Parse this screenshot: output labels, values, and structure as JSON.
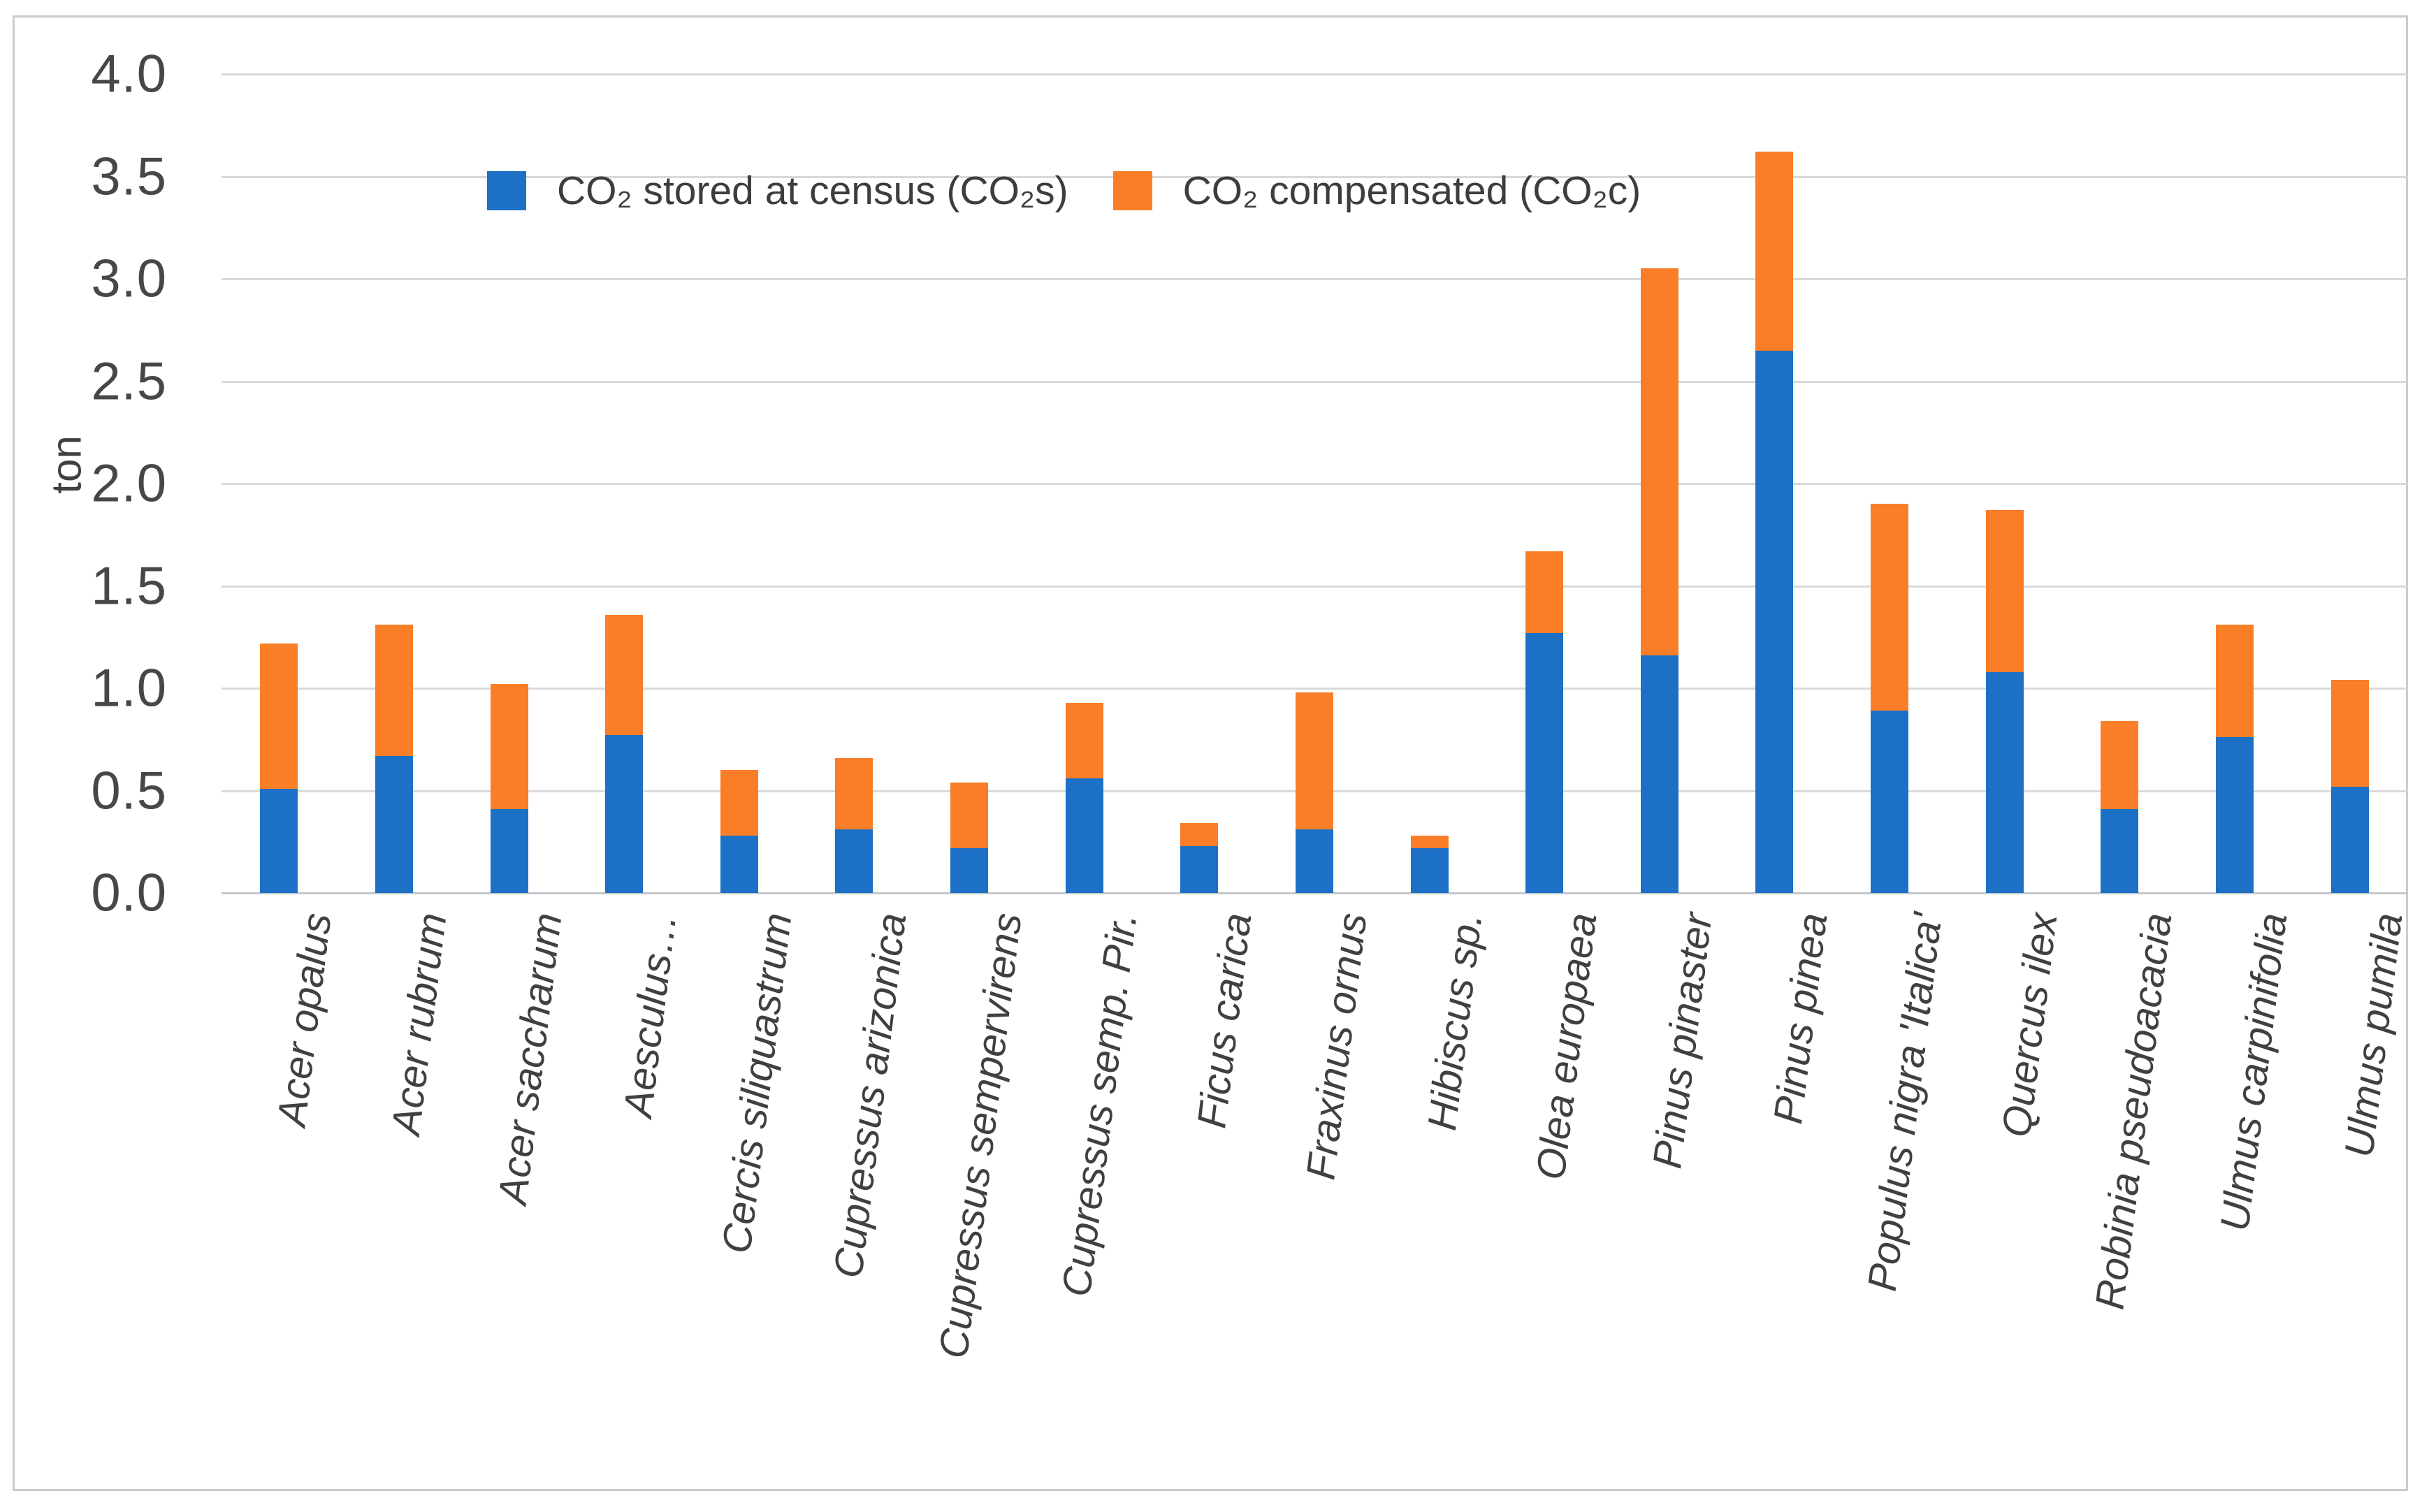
{
  "figure": {
    "kind": "stacked-column-chart",
    "background": "#ffffff",
    "border_color": "#c9cdce"
  },
  "colors": {
    "series_blue": "#1c70c5",
    "series_orange": "#f97e27",
    "gridline": "#d9d9d9",
    "axis_text": "#474747",
    "label_text": "#404040"
  },
  "chart_data": {
    "type": "bar",
    "stacked": true,
    "title": "",
    "xlabel": "",
    "ylabel": "ton",
    "ylim": [
      0,
      4
    ],
    "ytick_step": 0.5,
    "ytick_labels": [
      "4.0",
      "3.5",
      "3.0",
      "2.5",
      "2.0",
      "1.5",
      "1.0",
      "0.5",
      "0.0"
    ],
    "grid": true,
    "legend_position": "top-left-inside",
    "categories": [
      "Acer opalus",
      "Acer rubrum",
      "Acer saccharum",
      "Aesculus…",
      "Cercis siliquastrum",
      "Cupressus arizonica",
      "Cupressus sempervirens",
      "Cupressus semp. Pir.",
      "Ficus carica",
      "Fraxinus ornus",
      "Hibiscus sp.",
      "Olea europaea",
      "Pinus pinaster",
      "Pinus pinea",
      "Populus nigra 'Italica'",
      "Quercus ilex",
      "Robinia pseudoacacia",
      "Ulmus carpinifolia",
      "Ulmus pumila"
    ],
    "series": [
      {
        "name": "CO₂ stored at census (CO₂s)",
        "color": "#1c70c5",
        "values": [
          0.51,
          0.67,
          0.41,
          0.77,
          0.28,
          0.31,
          0.22,
          0.56,
          0.23,
          0.31,
          0.22,
          1.27,
          1.16,
          2.65,
          0.89,
          1.08,
          0.41,
          0.76,
          0.52
        ]
      },
      {
        "name": "CO₂ compensated (CO₂c)",
        "color": "#f97e27",
        "values": [
          0.71,
          0.64,
          0.61,
          0.59,
          0.32,
          0.35,
          0.32,
          0.37,
          0.11,
          0.67,
          0.06,
          0.4,
          1.89,
          0.97,
          1.01,
          0.79,
          0.43,
          0.55,
          0.52
        ]
      }
    ],
    "stack_totals": [
      1.22,
      1.31,
      1.02,
      1.36,
      0.6,
      0.66,
      0.54,
      0.93,
      0.34,
      0.98,
      0.28,
      1.67,
      3.05,
      3.62,
      1.9,
      1.87,
      0.84,
      1.31,
      1.04
    ]
  }
}
